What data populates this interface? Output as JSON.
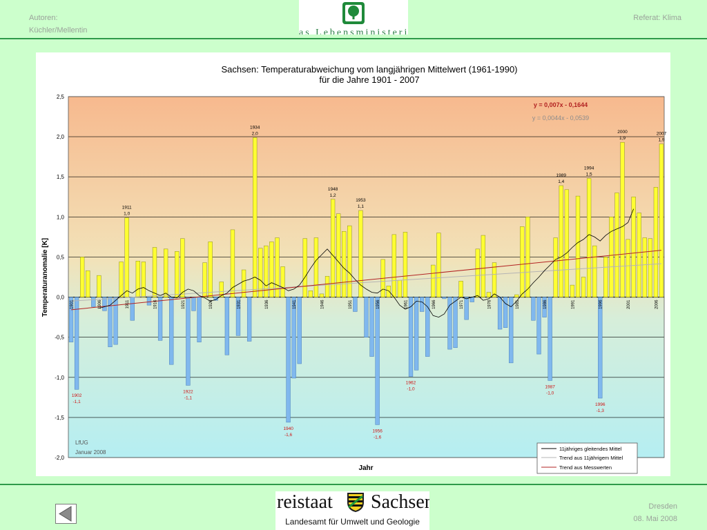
{
  "header": {
    "authors_label": "Autoren:",
    "authors_names": "Küchler/Mellentin",
    "department": "Referat: Klima",
    "logo_caption": "as Lebensministerium"
  },
  "footer": {
    "state_word_left": "reistaat",
    "state_word_right": "Sachsen",
    "agency": "Landesamt für Umwelt und Geologie",
    "city": "Dresden",
    "date": "08. Mai 2008"
  },
  "colors": {
    "page_bg": "#ccffcc",
    "positive_bar": "#ffff33",
    "negative_bar": "#80b8ee",
    "bg_top": "#f7b98e",
    "bg_bottom": "#b5eef2",
    "trend_measured": "#b22222",
    "trend_smoothed": "#b4b4b4",
    "moving_average": "#000000"
  },
  "chart_data": {
    "type": "bar",
    "title": "Sachsen: Temperaturabweichung vom langjährigen Mittelwert (1961-1990)",
    "subtitle": "für die Jahre 1901 - 2007",
    "xlabel": "Jahr",
    "ylabel": "Temperaturanomalie [K]",
    "ylim": [
      -2.0,
      2.5
    ],
    "yticks": [
      "2,5",
      "2,0",
      "1,5",
      "1,0",
      "0,5",
      "0,0",
      "-0,5",
      "-1,0",
      "-1,5",
      "-2,0"
    ],
    "grid": true,
    "legend_position": "bottom-right",
    "years": [
      1901,
      1902,
      1903,
      1904,
      1905,
      1906,
      1907,
      1908,
      1909,
      1910,
      1911,
      1912,
      1913,
      1914,
      1915,
      1916,
      1917,
      1918,
      1919,
      1920,
      1921,
      1922,
      1923,
      1924,
      1925,
      1926,
      1927,
      1928,
      1929,
      1930,
      1931,
      1932,
      1933,
      1934,
      1935,
      1936,
      1937,
      1938,
      1939,
      1940,
      1941,
      1942,
      1943,
      1944,
      1945,
      1946,
      1947,
      1948,
      1949,
      1950,
      1951,
      1952,
      1953,
      1954,
      1955,
      1956,
      1957,
      1958,
      1959,
      1960,
      1961,
      1962,
      1963,
      1964,
      1965,
      1966,
      1967,
      1968,
      1969,
      1970,
      1971,
      1972,
      1973,
      1974,
      1975,
      1976,
      1977,
      1978,
      1979,
      1980,
      1981,
      1982,
      1983,
      1984,
      1985,
      1986,
      1987,
      1988,
      1989,
      1990,
      1991,
      1992,
      1993,
      1994,
      1995,
      1996,
      1997,
      1998,
      1999,
      2000,
      2001,
      2002,
      2003,
      2004,
      2005,
      2006,
      2007
    ],
    "values": [
      -0.56,
      -1.15,
      0.5,
      0.33,
      -0.12,
      0.27,
      -0.17,
      -0.62,
      -0.59,
      0.44,
      0.99,
      -0.29,
      0.45,
      0.44,
      -0.1,
      0.62,
      -0.54,
      0.6,
      -0.84,
      0.57,
      0.73,
      -1.1,
      -0.17,
      -0.56,
      0.43,
      0.69,
      -0.04,
      0.19,
      -0.72,
      0.84,
      -0.48,
      0.34,
      -0.55,
      1.99,
      0.61,
      0.64,
      0.69,
      0.74,
      0.38,
      -1.56,
      -1.01,
      -0.83,
      0.73,
      0.08,
      0.74,
      0.04,
      0.26,
      1.22,
      1.04,
      0.82,
      0.89,
      -0.18,
      1.08,
      -0.5,
      -0.74,
      -1.59,
      0.47,
      0.14,
      0.78,
      0.21,
      0.81,
      -0.99,
      -0.91,
      -0.18,
      -0.74,
      0.4,
      0.8,
      -0.02,
      -0.65,
      -0.63,
      0.2,
      -0.28,
      -0.06,
      0.6,
      0.77,
      0.06,
      0.43,
      -0.4,
      -0.38,
      -0.82,
      0.03,
      0.88,
      1.0,
      -0.29,
      -0.71,
      -0.25,
      -1.04,
      0.74,
      1.39,
      1.34,
      0.15,
      1.26,
      0.25,
      1.48,
      0.64,
      -1.26,
      0.5,
      1.0,
      1.3,
      1.93,
      0.72,
      1.25,
      1.05,
      0.74,
      0.73,
      1.37,
      1.91
    ],
    "tick_years": [
      1901,
      1906,
      1911,
      1916,
      1921,
      1926,
      1931,
      1936,
      1941,
      1946,
      1951,
      1956,
      1961,
      1966,
      1971,
      1976,
      1981,
      1986,
      1991,
      1996,
      2001,
      2006
    ],
    "moving_average_11yr": [
      [
        1906,
        -0.14
      ],
      [
        1907,
        -0.12
      ],
      [
        1908,
        -0.1
      ],
      [
        1909,
        -0.04
      ],
      [
        1910,
        0.02
      ],
      [
        1911,
        0.08
      ],
      [
        1912,
        0.05
      ],
      [
        1913,
        0.1
      ],
      [
        1914,
        0.12
      ],
      [
        1915,
        0.08
      ],
      [
        1916,
        0.05
      ],
      [
        1917,
        0.02
      ],
      [
        1918,
        0.05
      ],
      [
        1919,
        0.0
      ],
      [
        1920,
        -0.01
      ],
      [
        1921,
        0.06
      ],
      [
        1922,
        0.1
      ],
      [
        1923,
        0.08
      ],
      [
        1924,
        0.02
      ],
      [
        1925,
        -0.01
      ],
      [
        1926,
        -0.05
      ],
      [
        1927,
        -0.03
      ],
      [
        1928,
        0.02
      ],
      [
        1929,
        0.05
      ],
      [
        1930,
        0.12
      ],
      [
        1931,
        0.16
      ],
      [
        1932,
        0.2
      ],
      [
        1933,
        0.22
      ],
      [
        1934,
        0.25
      ],
      [
        1935,
        0.21
      ],
      [
        1936,
        0.14
      ],
      [
        1937,
        0.18
      ],
      [
        1938,
        0.15
      ],
      [
        1939,
        0.12
      ],
      [
        1940,
        0.08
      ],
      [
        1941,
        0.1
      ],
      [
        1942,
        0.15
      ],
      [
        1943,
        0.25
      ],
      [
        1944,
        0.36
      ],
      [
        1945,
        0.46
      ],
      [
        1946,
        0.53
      ],
      [
        1947,
        0.6
      ],
      [
        1948,
        0.52
      ],
      [
        1949,
        0.44
      ],
      [
        1950,
        0.36
      ],
      [
        1951,
        0.3
      ],
      [
        1952,
        0.22
      ],
      [
        1953,
        0.15
      ],
      [
        1954,
        0.1
      ],
      [
        1955,
        0.06
      ],
      [
        1956,
        0.05
      ],
      [
        1957,
        0.1
      ],
      [
        1958,
        0.08
      ],
      [
        1959,
        0.0
      ],
      [
        1960,
        -0.1
      ],
      [
        1961,
        -0.15
      ],
      [
        1962,
        -0.12
      ],
      [
        1963,
        -0.05
      ],
      [
        1964,
        -0.06
      ],
      [
        1965,
        -0.12
      ],
      [
        1966,
        -0.23
      ],
      [
        1967,
        -0.25
      ],
      [
        1968,
        -0.21
      ],
      [
        1969,
        -0.1
      ],
      [
        1970,
        -0.05
      ],
      [
        1971,
        0.0
      ],
      [
        1972,
        -0.02
      ],
      [
        1973,
        0.0
      ],
      [
        1974,
        0.02
      ],
      [
        1975,
        -0.04
      ],
      [
        1976,
        -0.02
      ],
      [
        1977,
        0.04
      ],
      [
        1978,
        0.0
      ],
      [
        1979,
        -0.08
      ],
      [
        1980,
        -0.12
      ],
      [
        1981,
        -0.05
      ],
      [
        1982,
        0.04
      ],
      [
        1983,
        0.1
      ],
      [
        1984,
        0.18
      ],
      [
        1985,
        0.25
      ],
      [
        1986,
        0.33
      ],
      [
        1987,
        0.4
      ],
      [
        1988,
        0.47
      ],
      [
        1989,
        0.5
      ],
      [
        1990,
        0.55
      ],
      [
        1991,
        0.62
      ],
      [
        1992,
        0.68
      ],
      [
        1993,
        0.72
      ],
      [
        1994,
        0.78
      ],
      [
        1995,
        0.75
      ],
      [
        1996,
        0.7
      ],
      [
        1997,
        0.77
      ],
      [
        1998,
        0.82
      ],
      [
        1999,
        0.85
      ],
      [
        2000,
        0.88
      ],
      [
        2001,
        0.93
      ],
      [
        2002,
        1.1
      ]
    ],
    "trend_measured": {
      "label": "y = 0,007x - 0,1644",
      "slope": 0.007,
      "intercept": -0.1644
    },
    "trend_smoothed": {
      "label": "y = 0,0044x - 0,0539",
      "slope": 0.0044,
      "intercept": -0.0539
    },
    "peak_annotations": [
      {
        "year": 1911,
        "label_year": "1911",
        "label_value": "1,0"
      },
      {
        "year": 1934,
        "label_year": "1934",
        "label_value": "2,0"
      },
      {
        "year": 1948,
        "label_year": "1948",
        "label_value": "1,2"
      },
      {
        "year": 1953,
        "label_year": "1953",
        "label_value": "1,1"
      },
      {
        "year": 1989,
        "label_year": "1989",
        "label_value": "1,4"
      },
      {
        "year": 1994,
        "label_year": "1994",
        "label_value": "1,5"
      },
      {
        "year": 2000,
        "label_year": "2000",
        "label_value": "1,9"
      },
      {
        "year": 2007,
        "label_year": "2007",
        "label_value": "1,9"
      }
    ],
    "trough_annotations": [
      {
        "year": 1902,
        "label_year": "1902",
        "label_value": "-1,1"
      },
      {
        "year": 1922,
        "label_year": "1922",
        "label_value": "-1,1"
      },
      {
        "year": 1940,
        "label_year": "1940",
        "label_value": "-1,6"
      },
      {
        "year": 1956,
        "label_year": "1956",
        "label_value": "-1,6"
      },
      {
        "year": 1962,
        "label_year": "1962",
        "label_value": "-1,0"
      },
      {
        "year": 1987,
        "label_year": "1987",
        "label_value": "-1,0"
      },
      {
        "year": 1996,
        "label_year": "1996",
        "label_value": "-1,3"
      }
    ],
    "source_note": [
      "LfUG",
      "Januar 2008"
    ],
    "legend": [
      {
        "label": "11jähriges gleitendes Mittel",
        "color": "#000000"
      },
      {
        "label": "Trend aus 11jährigem Mittel",
        "color": "#b4b4b4"
      },
      {
        "label": "Trend aus Messwerten",
        "color": "#b22222"
      }
    ]
  }
}
